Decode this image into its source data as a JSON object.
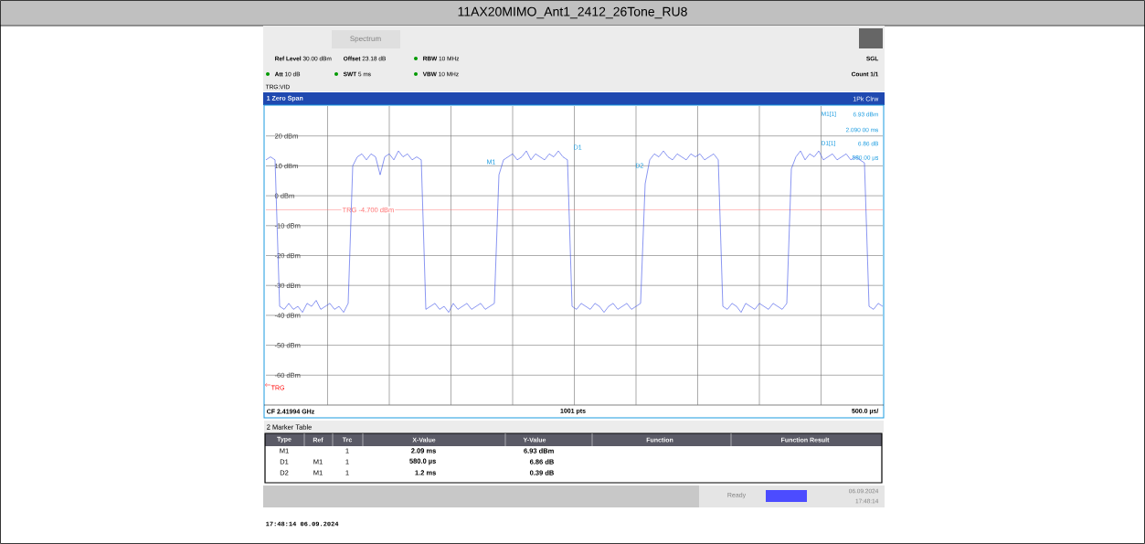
{
  "chart_data": {
    "type": "line",
    "title": "11AX20MIMO_Ant1_2412_26Tone_RU8",
    "categories": [
      null,
      null,
      null,
      null,
      null,
      null,
      null,
      null,
      null,
      null,
      null,
      null,
      null,
      null,
      null,
      null,
      null,
      null,
      null,
      null,
      null,
      null,
      null,
      null,
      null,
      null,
      null,
      null,
      null,
      null,
      null,
      null,
      null,
      null,
      null,
      null,
      null,
      null,
      null,
      null,
      null,
      null,
      null,
      null,
      null,
      null,
      null,
      null,
      null,
      null,
      null,
      null,
      null,
      null,
      null,
      null,
      null,
      null,
      null,
      null,
      null,
      null,
      null,
      null,
      null,
      null,
      null,
      null,
      null,
      null,
      null,
      null,
      null,
      null,
      null,
      null,
      null,
      null,
      null,
      null,
      null,
      null,
      null,
      null,
      null,
      null,
      null,
      null,
      null,
      null,
      null,
      null,
      null,
      null,
      null,
      null,
      null,
      null,
      null,
      null,
      null,
      null,
      null,
      null,
      null,
      null,
      null,
      null,
      null,
      null,
      null,
      null,
      null,
      null,
      null,
      null,
      null,
      null,
      null,
      null,
      null,
      null,
      null,
      null,
      null,
      null,
      null,
      null,
      null,
      null,
      null,
      null,
      null,
      null,
      null,
      null
    ],
    "series": [
      {
        "color": "#3b4fe8",
        "values": [
          12,
          13,
          12,
          -37,
          -38,
          -36,
          -38,
          -37,
          -39,
          -36,
          -37,
          -35,
          -38,
          -37,
          -36,
          -38,
          -37,
          -39,
          -36,
          10,
          13,
          14,
          12,
          14,
          13,
          7,
          13,
          14,
          12,
          15,
          13,
          14,
          12,
          13,
          12,
          -38,
          -37,
          -36,
          -38,
          -37,
          -39,
          -36,
          -38,
          -37,
          -36,
          -38,
          -37,
          -36,
          -38,
          -37,
          -36,
          7,
          12,
          13,
          14,
          12,
          13,
          15,
          12,
          14,
          13,
          12,
          14,
          13,
          15,
          13,
          12,
          -37,
          -38,
          -36,
          -37,
          -38,
          -36,
          -37,
          -39,
          -37,
          -36,
          -38,
          -37,
          -36,
          -38,
          -37,
          -36,
          4,
          12,
          14,
          13,
          15,
          13,
          12,
          14,
          13,
          12,
          14,
          13,
          14,
          12,
          13,
          14,
          12,
          -37,
          -38,
          -36,
          -37,
          -39,
          -36,
          -37,
          -38,
          -36,
          -37,
          -38,
          -36,
          -37,
          -38,
          -36,
          9,
          13,
          15,
          12,
          14,
          13,
          15,
          12,
          13,
          14,
          12,
          13,
          14,
          12,
          13,
          12,
          11,
          -37,
          -38,
          -36,
          -37
        ]
      }
    ],
    "ylim": [
      -70,
      30
    ],
    "yticks": [
      {
        "value": 20,
        "label": "20 dBm"
      },
      {
        "value": 10,
        "label": "10 dBm"
      },
      {
        "value": 0,
        "label": "0 dBm"
      },
      {
        "value": -10,
        "label": "-10 dBm"
      },
      {
        "value": -20,
        "label": "-20 dBm"
      },
      {
        "value": -30,
        "label": "-30 dBm"
      },
      {
        "value": -40,
        "label": "-40 dBm"
      },
      {
        "value": -50,
        "label": "-50 dBm"
      },
      {
        "value": -60,
        "label": "-60 dBm"
      }
    ],
    "grid": true,
    "marker": "none",
    "ref_lines": [
      {
        "axis": "y",
        "value": -4.7,
        "label": "TRG -4.700 dBm",
        "color": "#ff7070"
      }
    ],
    "annotations": [
      "Spectrum",
      "**Ref Level** 30.00 dBm",
      "**Offset** 23.18 dB",
      "**RBW** 10 MHz",
      "**Att** 10 dB",
      "**SWT** 5 ms",
      "**VBW** 10 MHz",
      "TRG:VID",
      "SGL",
      "Count 1/1",
      "1 Zero Span",
      "1Pk Clrw",
      "M1[1]",
      "6.93 dBm",
      "2.090 00 ms",
      "D1[1]",
      "6.86 dB",
      "580.00 µs",
      "M1",
      "D1",
      "D2",
      "CF 2.41994 GHz",
      "1001 pts",
      "500.0 µs/",
      "2 Marker Table",
      "Type",
      "Ref",
      "Trc",
      "X-Value",
      "Y-Value",
      "Function",
      "Function Result",
      "M1",
      "1",
      "2.09 ms",
      "6.93 dBm",
      "D1",
      "M1",
      "1",
      "580.0 µs",
      "6.86 dB",
      "D2",
      "M1",
      "1",
      "1.2 ms",
      "0.39 dB",
      "Ready",
      "06.09.2024",
      "17:48:14",
      "17:48:14  06.09.2024",
      "TRG"
    ]
  }
}
